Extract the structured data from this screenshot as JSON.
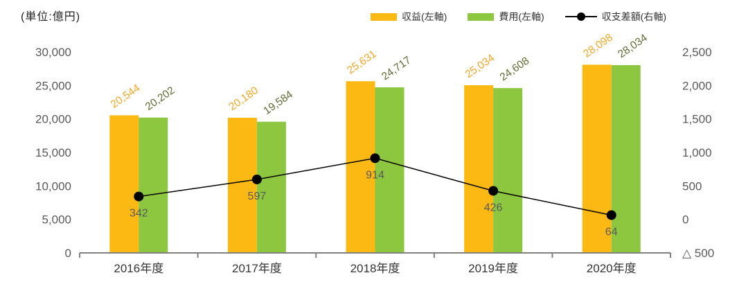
{
  "header": {
    "unit_label": "(単位:億円)"
  },
  "chart_data": {
    "type": "bar",
    "subtype": "bar+line combo",
    "categories": [
      "2016年度",
      "2017年度",
      "2018年度",
      "2019年度",
      "2020年度"
    ],
    "series": [
      {
        "name": "収益(左軸)",
        "type": "bar",
        "axis": "left",
        "color": "#FDB913",
        "label_color": "#F5A623",
        "values": [
          20544,
          20180,
          25631,
          25034,
          28098
        ]
      },
      {
        "name": "費用(左軸)",
        "type": "bar",
        "axis": "left",
        "color": "#8DC63F",
        "label_color": "#5F6C34",
        "values": [
          20202,
          19584,
          24717,
          24608,
          28034
        ]
      },
      {
        "name": "収支差額(右軸)",
        "type": "line",
        "axis": "right",
        "color": "#000000",
        "label_color": "#595959",
        "values": [
          342,
          597,
          914,
          426,
          64
        ]
      }
    ],
    "left_axis": {
      "min": 0,
      "max": 30000,
      "step": 5000,
      "tick_labels": [
        "30,000",
        "25,000",
        "20,000",
        "15,000",
        "10,000",
        "5,000",
        "0"
      ]
    },
    "right_axis": {
      "min": -500,
      "max": 2500,
      "step": 500,
      "tick_labels": [
        "2,500",
        "2,000",
        "1,500",
        "1,000",
        "500",
        "0",
        "△ 500"
      ]
    },
    "grid": false,
    "legend_position": "top-right",
    "data_label_rotation_deg": -35,
    "axis_text_color": "#595959",
    "category_text_color": "#333333",
    "axis_line_color": "#808080"
  }
}
